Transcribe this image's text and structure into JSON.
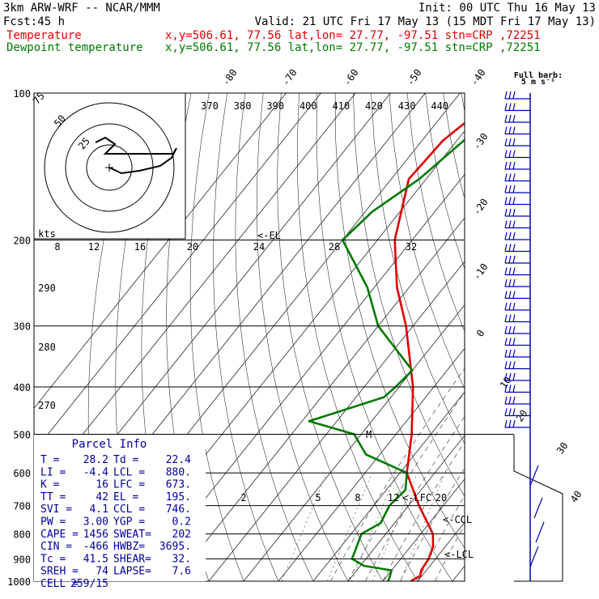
{
  "header": {
    "model": "3km ARW-WRF -- NCAR/MMM",
    "init": "Init: 00 UTC Thu 16 May 13",
    "fcst_label": "Fcst:",
    "fcst_value": "45 h",
    "valid": "Valid: 21 UTC Fri 17 May 13 (15 MDT Fri 17 May 13)",
    "temp_label": "Temperature",
    "dew_label": "Dewpoint temperature",
    "temp_loc": "x,y=506.61, 77.56   lat,lon= 27.77, -97.51   stn=CRP ,72251",
    "dew_loc": "x,y=506.61, 77.56   lat,lon= 27.77, -97.51   stn=CRP ,72251",
    "barb_title1": "Full barb:",
    "barb_title2": "5 m s⁻¹"
  },
  "colors": {
    "temperature": "#e00000",
    "dewpoint": "#007a00",
    "parcel": "#0000a0",
    "barbs": "#0000c0"
  },
  "chart_data": {
    "type": "line",
    "chart": "skew-T log-P sounding",
    "y_axis": {
      "scale": "log",
      "ticks": [
        100,
        200,
        300,
        400,
        500,
        600,
        700,
        800,
        900,
        1000
      ],
      "range": [
        100,
        1000
      ]
    },
    "isotherm_labels": [
      "-80",
      "-70",
      "-60",
      "-50",
      "-40",
      "-30",
      "-20",
      "-10",
      "0",
      "10",
      "20",
      "30",
      "40"
    ],
    "theta_labels": [
      "370",
      "380",
      "390",
      "400",
      "410",
      "420",
      "430",
      "440"
    ],
    "theta_e_labels": [
      "290",
      "280",
      "270"
    ],
    "mixing_ratio_labels": [
      "2",
      "5",
      "8",
      "12",
      "20"
    ],
    "hodograph_labels": [
      "8",
      "12",
      "16",
      "20",
      "24",
      "28",
      "32",
      "kts",
      "25",
      "50",
      "75"
    ],
    "series": [
      {
        "name": "Temperature",
        "points": [
          [
            1000,
            28
          ],
          [
            975,
            29.5
          ],
          [
            950,
            28.5
          ],
          [
            900,
            28
          ],
          [
            850,
            26.5
          ],
          [
            800,
            23.5
          ],
          [
            700,
            13
          ],
          [
            600,
            2
          ],
          [
            500,
            -5.5
          ],
          [
            400,
            -16
          ],
          [
            300,
            -32
          ],
          [
            250,
            -43.5
          ],
          [
            200,
            -55
          ],
          [
            150,
            -65
          ],
          [
            125,
            -64
          ],
          [
            100,
            -58
          ]
        ]
      },
      {
        "name": "Dewpoint temperature",
        "points": [
          [
            1000,
            21.5
          ],
          [
            980,
            21
          ],
          [
            950,
            20
          ],
          [
            930,
            11
          ],
          [
            900,
            6
          ],
          [
            800,
            3
          ],
          [
            760,
            6
          ],
          [
            700,
            4.5
          ],
          [
            650,
            5.5
          ],
          [
            600,
            2
          ],
          [
            550,
            -14
          ],
          [
            500,
            -22
          ],
          [
            470,
            -38
          ],
          [
            420,
            -22
          ],
          [
            400,
            -21
          ],
          [
            370,
            -20
          ],
          [
            300,
            -40
          ],
          [
            250,
            -52
          ],
          [
            200,
            -70
          ],
          [
            175,
            -68
          ],
          [
            150,
            -62
          ],
          [
            125,
            -58
          ],
          [
            110,
            -53
          ],
          [
            100,
            -48
          ]
        ]
      }
    ],
    "annotations": [
      "<-EL",
      "<-LFC",
      "<-CCL",
      "<-LCL",
      "M"
    ],
    "side_axis": {
      "labels": [
        "30",
        "40"
      ]
    }
  },
  "parcel_info": {
    "title": "Parcel Info",
    "rows": [
      [
        "T  =",
        "28.2",
        "Td =",
        "22.4"
      ],
      [
        "LI =",
        "-4.4",
        "LCL =",
        "880."
      ],
      [
        "K  =",
        "16",
        "LFC =",
        "673."
      ],
      [
        "TT =",
        "42",
        "EL =",
        "195."
      ],
      [
        "SVI =",
        "4.1",
        "CCL =",
        "746."
      ],
      [
        "PW =",
        "3.00",
        "YGP =",
        "0.2"
      ],
      [
        "CAPE =",
        "1456",
        "SWEAT=",
        "202"
      ],
      [
        "CIN =",
        "-466",
        "HWBZ=",
        "3695."
      ],
      [
        "Tc =",
        "41.5",
        "SHEAR=",
        "32."
      ],
      [
        "SREH =",
        "74",
        "LAPSE=",
        "7.6"
      ],
      [
        "CELL =",
        "259/15",
        "",
        ""
      ]
    ]
  }
}
